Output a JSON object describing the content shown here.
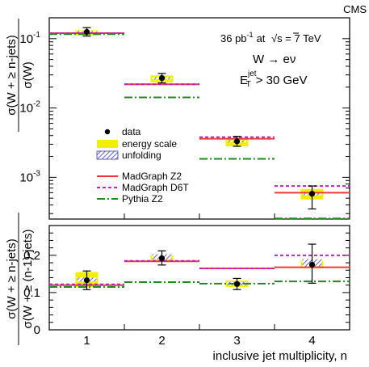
{
  "chart_data": [
    {
      "type": "line",
      "panel": "top",
      "watermark": "CMS",
      "ylabel": "σ(W + ≥ n-jets) / σ(W)",
      "yscale": "log",
      "ylim": [
        0.00025,
        0.2
      ],
      "yticks": [
        {
          "value": 0.1,
          "base": "10",
          "exp": "-1"
        },
        {
          "value": 0.01,
          "base": "10",
          "exp": "-2"
        },
        {
          "value": 0.001,
          "base": "10",
          "exp": "-3"
        }
      ],
      "annotations": {
        "lumi": "36 pb",
        "lumi_sup": "-1",
        "energy_mid": "at",
        "energy": "s = 7 TeV",
        "energy_prefix": "√",
        "process": "W → eν",
        "cut": "E",
        "cut_sup": "jet",
        "cut_sub": "T",
        "cut_tail": "> 30 GeV"
      },
      "legend": {
        "data": "data",
        "energy_scale": "energy scale",
        "unfolding": "unfolding",
        "madgraph_z2": "MadGraph Z2",
        "madgraph_d6t": "MadGraph D6T",
        "pythia_z2": "Pythia Z2"
      },
      "colors": {
        "energy_scale": "#f2ee00",
        "unfolding": "#3b3ba8",
        "madgraph_z2": "#ee3a3a",
        "madgraph_d6t": "#c020c0",
        "pythia_z2": "#1e8b1e"
      },
      "x": [
        1,
        2,
        3,
        4
      ],
      "data": [
        0.125,
        0.027,
        0.0033,
        0.00058
      ],
      "data_err_up": [
        0.019,
        0.0045,
        0.0006,
        0.00017
      ],
      "data_err_down": [
        0.016,
        0.004,
        0.0005,
        0.00023
      ],
      "energy_scale_band": [
        [
          0.112,
          0.132
        ],
        [
          0.0235,
          0.0295
        ],
        [
          0.0028,
          0.0037
        ],
        [
          0.00048,
          0.00068
        ]
      ],
      "unfolding_band": [
        [
          0.121,
          0.129
        ],
        [
          0.0262,
          0.0278
        ],
        [
          0.0032,
          0.0034
        ],
        [
          0.00056,
          0.0006
        ]
      ],
      "series": [
        {
          "name": "MadGraph Z2",
          "values": [
            0.12,
            0.022,
            0.0036,
            0.0006
          ]
        },
        {
          "name": "MadGraph D6T",
          "values": [
            0.12,
            0.022,
            0.0038,
            0.00075
          ]
        },
        {
          "name": "Pythia Z2",
          "values": [
            0.116,
            0.0142,
            0.00185,
            0.000255
          ]
        }
      ]
    },
    {
      "type": "line",
      "panel": "bottom",
      "ylabel": "σ(W + ≥ n-jets) / σ(W + ≥ (n-1)-jets)",
      "xlabel": "inclusive jet multiplicity, n",
      "ylim": [
        0,
        0.28
      ],
      "yticks": [
        {
          "value": 0,
          "label": "0"
        },
        {
          "value": 0.1,
          "label": "0.1"
        },
        {
          "value": 0.2,
          "label": "0.2"
        }
      ],
      "xticks": [
        "1",
        "2",
        "3",
        "4"
      ],
      "x": [
        1,
        2,
        3,
        4
      ],
      "data": [
        0.133,
        0.192,
        0.123,
        0.175
      ],
      "data_err_up": [
        0.025,
        0.02,
        0.015,
        0.055
      ],
      "data_err_down": [
        0.025,
        0.018,
        0.015,
        0.05
      ],
      "energy_scale_band": [
        [
          0.115,
          0.155
        ],
        [
          0.185,
          0.2
        ],
        [
          0.115,
          0.132
        ],
        [
          0.165,
          0.185
        ]
      ],
      "unfolding_band": [
        [
          0.13,
          0.14
        ],
        [
          0.19,
          0.203
        ],
        [
          0.12,
          0.128
        ],
        [
          0.168,
          0.19
        ]
      ],
      "series": [
        {
          "name": "MadGraph Z2",
          "values": [
            0.12,
            0.184,
            0.165,
            0.168
          ]
        },
        {
          "name": "MadGraph D6T",
          "values": [
            0.122,
            0.185,
            0.165,
            0.2
          ]
        },
        {
          "name": "Pythia Z2",
          "values": [
            0.115,
            0.128,
            0.124,
            0.13
          ]
        }
      ]
    }
  ]
}
